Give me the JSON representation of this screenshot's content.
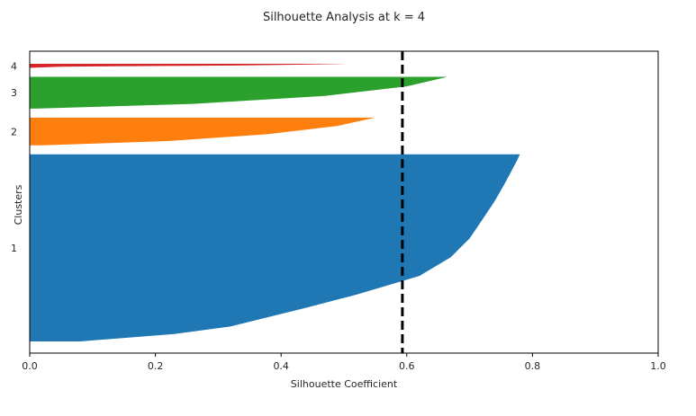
{
  "chart_data": {
    "type": "area",
    "title": "Silhouette Analysis at k = 4",
    "xlabel": "Silhouette Coefficient",
    "ylabel": "Clusters",
    "xlim": [
      0.0,
      1.0
    ],
    "xticks": [
      "0.0",
      "0.2",
      "0.4",
      "0.6",
      "0.8",
      "1.0"
    ],
    "average_silhouette": 0.593,
    "grid": false,
    "legend": "none",
    "series": [
      {
        "name": "1",
        "color": "#1f77b4",
        "size": 230,
        "max_coefficient": 0.78,
        "profile": [
          [
            0,
            0.78
          ],
          [
            0.03,
            0.776
          ],
          [
            0.08,
            0.768
          ],
          [
            0.15,
            0.757
          ],
          [
            0.25,
            0.74
          ],
          [
            0.35,
            0.72
          ],
          [
            0.45,
            0.7
          ],
          [
            0.55,
            0.67
          ],
          [
            0.65,
            0.62
          ],
          [
            0.75,
            0.52
          ],
          [
            0.82,
            0.44
          ],
          [
            0.87,
            0.38
          ],
          [
            0.92,
            0.32
          ],
          [
            0.96,
            0.23
          ],
          [
            1,
            0.08
          ]
        ]
      },
      {
        "name": "2",
        "color": "#ff7f0e",
        "size": 34,
        "max_coefficient": 0.55,
        "profile": [
          [
            0,
            0.55
          ],
          [
            0.3,
            0.49
          ],
          [
            0.6,
            0.38
          ],
          [
            0.85,
            0.22
          ],
          [
            1,
            0.02
          ]
        ]
      },
      {
        "name": "3",
        "color": "#2ca02c",
        "size": 39,
        "max_coefficient": 0.665,
        "profile": [
          [
            0,
            0.665
          ],
          [
            0.3,
            0.6
          ],
          [
            0.6,
            0.47
          ],
          [
            0.85,
            0.26
          ],
          [
            1,
            0.01
          ]
        ]
      },
      {
        "name": "4",
        "color": "#d62728",
        "size": 5,
        "max_coefficient": 0.505,
        "profile": [
          [
            0,
            0.505
          ],
          [
            0.2,
            0.44
          ],
          [
            0.45,
            0.31
          ],
          [
            0.7,
            0.05
          ],
          [
            1,
            0.0
          ]
        ]
      }
    ]
  }
}
